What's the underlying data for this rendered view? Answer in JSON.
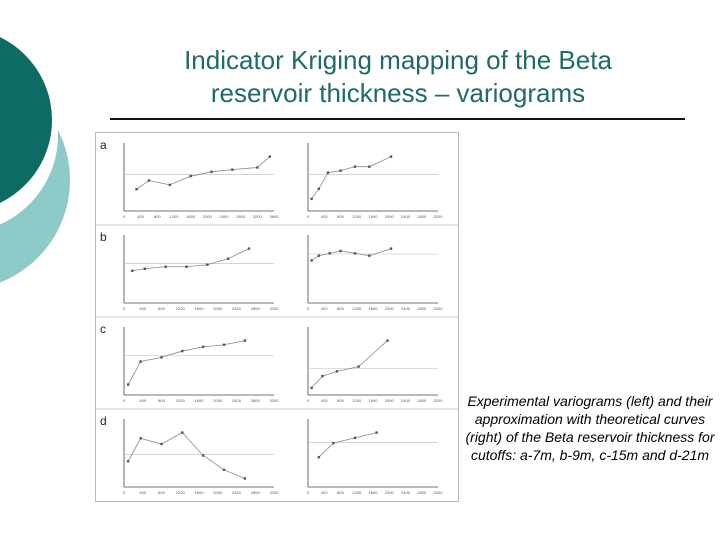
{
  "slide": {
    "title_line1": "Indicator Kriging mapping of the Beta",
    "title_line2": "reservoir thickness – variograms",
    "caption": "Experimental variograms (left) and their approximation with theoretical curves (right) of the Beta reservoir thickness for cutoffs: a-7m, b-9m, c-15m and d-21m"
  },
  "colors": {
    "teal_dark": "#0d6b66",
    "teal_light": "#8ecbc8",
    "title": "#1f6b66",
    "series": "#8a8a8a"
  },
  "chart_data": [
    {
      "panel": "a",
      "side": "left",
      "type": "line",
      "x_ticks": [
        "0",
        "400",
        "800",
        "1200",
        "1600",
        "2000",
        "2400",
        "2800",
        "3200",
        "3600"
      ],
      "y": [
        0.1,
        0.14,
        0.12,
        0.16,
        0.18,
        0.19,
        0.2,
        0.25
      ],
      "x": [
        300,
        600,
        1100,
        1600,
        2100,
        2600,
        3200,
        3500
      ]
    },
    {
      "panel": "a",
      "side": "right",
      "type": "line",
      "x_ticks": [
        "0",
        "400",
        "800",
        "1200",
        "1600",
        "2000",
        "2400",
        "2800",
        "3200"
      ],
      "y": [
        0.3,
        0.55,
        0.95,
        1.0,
        1.1,
        1.1,
        1.35
      ],
      "x": [
        100,
        300,
        550,
        900,
        1300,
        1700,
        2300
      ]
    },
    {
      "panel": "b",
      "side": "left",
      "type": "line",
      "x_ticks": [
        "0",
        "400",
        "800",
        "1200",
        "1600",
        "2000",
        "2400",
        "2800",
        "3200"
      ],
      "y": [
        0.16,
        0.17,
        0.18,
        0.18,
        0.19,
        0.22,
        0.27
      ],
      "x": [
        200,
        500,
        1000,
        1500,
        2000,
        2500,
        3000
      ]
    },
    {
      "panel": "b",
      "side": "right",
      "type": "line",
      "x_ticks": [
        "0",
        "400",
        "800",
        "1200",
        "1600",
        "2000",
        "2400",
        "2800",
        "3200"
      ],
      "y": [
        0.9,
        1.0,
        1.05,
        1.1,
        1.05,
        1.0,
        1.15
      ],
      "x": [
        100,
        300,
        600,
        900,
        1300,
        1700,
        2300
      ]
    },
    {
      "panel": "c",
      "side": "left",
      "type": "line",
      "x_ticks": [
        "0",
        "400",
        "800",
        "1200",
        "1600",
        "2000",
        "2400",
        "2800",
        "3200"
      ],
      "y": [
        0.05,
        0.16,
        0.18,
        0.21,
        0.23,
        0.24,
        0.26
      ],
      "x": [
        100,
        400,
        900,
        1400,
        1900,
        2400,
        2900
      ]
    },
    {
      "panel": "c",
      "side": "right",
      "type": "line",
      "x_ticks": [
        "0",
        "400",
        "800",
        "1200",
        "1600",
        "2000",
        "2400",
        "2800",
        "3200"
      ],
      "y": [
        0.3,
        0.8,
        1.0,
        1.2,
        2.3
      ],
      "x": [
        100,
        400,
        800,
        1400,
        2200
      ]
    },
    {
      "panel": "d",
      "side": "left",
      "type": "line",
      "x_ticks": [
        "0",
        "400",
        "800",
        "1200",
        "1600",
        "2000",
        "2400",
        "2800",
        "3200"
      ],
      "y": [
        0.09,
        0.17,
        0.15,
        0.19,
        0.11,
        0.06,
        0.03
      ],
      "x": [
        100,
        400,
        900,
        1400,
        1900,
        2400,
        2900
      ]
    },
    {
      "panel": "d",
      "side": "right",
      "type": "line",
      "x_ticks": [
        "0",
        "400",
        "800",
        "1200",
        "1600",
        "2000",
        "2400",
        "2800",
        "3200"
      ],
      "y": [
        0.85,
        1.25,
        1.4,
        1.55
      ],
      "x": [
        300,
        700,
        1300,
        1900
      ]
    }
  ],
  "panel_labels": [
    "a",
    "b",
    "c",
    "d"
  ]
}
